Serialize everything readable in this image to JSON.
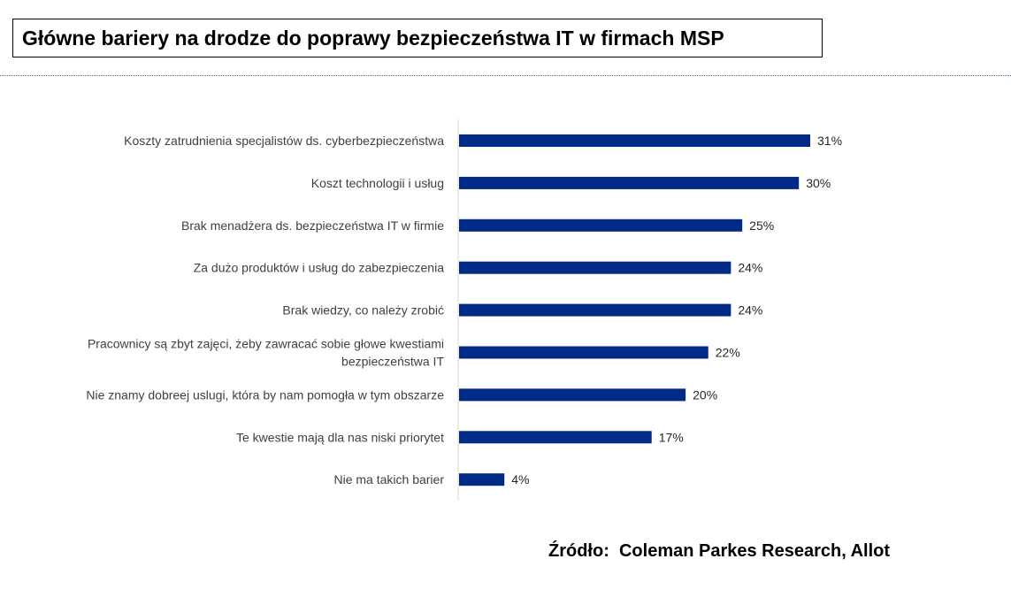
{
  "header": {
    "title": "Główne bariery na drodze do poprawy bezpieczeństwa IT w firmach MSP"
  },
  "chart_data": {
    "type": "bar",
    "orientation": "horizontal",
    "title": "Główne bariery na drodze do poprawy bezpieczeństwa IT w firmach MSP",
    "categories": [
      [
        "Koszty zatrudnienia specjalistów ds. cyberbezpieczeństwa"
      ],
      [
        "Koszt technologii i usług"
      ],
      [
        "Brak menadżera ds. bezpieczeństwa IT w firmie"
      ],
      [
        "Za dużo produktów i usług do zabezpieczenia"
      ],
      [
        "Brak wiedzy, co należy zrobić"
      ],
      [
        "Pracownicy są zbyt zajęci, żeby zawracać sobie głowe kwestiami",
        "bezpieczeństwa IT"
      ],
      [
        "Nie znamy dobreej uslugi, która by nam pomogła w tym obszarze"
      ],
      [
        "Te kwestie mają dla nas niski priorytet"
      ],
      [
        "Nie ma takich barier"
      ]
    ],
    "values": [
      31,
      30,
      25,
      24,
      24,
      22,
      20,
      17,
      4
    ],
    "value_labels": [
      "31%",
      "30%",
      "25%",
      "24%",
      "24%",
      "22%",
      "20%",
      "17%",
      "4%"
    ],
    "unit": "%",
    "xlim": [
      0,
      31
    ],
    "grid": false,
    "xlabel": "",
    "ylabel": "",
    "bar_color": "#002a86",
    "axis_color": "#d9d9d9"
  },
  "footer": {
    "source": "Źródło:  Coleman Parkes Research, Allot"
  }
}
